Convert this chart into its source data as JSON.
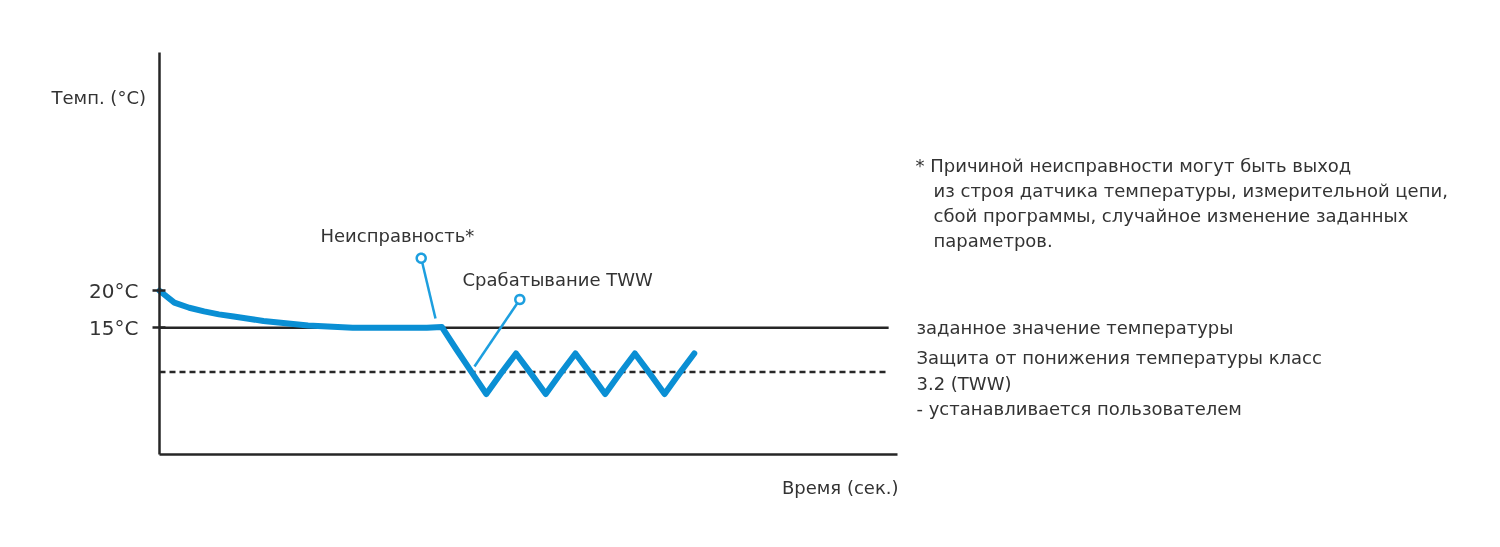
{
  "chart_data": {
    "type": "line",
    "ylabel": "Темп. (°C)",
    "xlabel": "Время (сек.)",
    "categories": [
      null,
      null,
      null,
      null,
      null,
      null,
      null,
      null,
      null,
      null,
      null,
      null,
      null,
      null,
      null,
      null,
      null,
      null,
      null,
      null,
      null,
      null,
      null,
      null,
      null,
      null,
      null,
      null,
      null,
      null,
      null,
      null,
      null,
      null,
      null,
      null,
      null
    ],
    "values": [
      20,
      18.4,
      17.7,
      17.2,
      16.8,
      16.5,
      16.2,
      15.9,
      15.7,
      15.5,
      15.3,
      15.2,
      15.1,
      15,
      15,
      15,
      15,
      15,
      15,
      15.1,
      12,
      9,
      6,
      8.8,
      11.5,
      8.8,
      6,
      8.8,
      11.5,
      8.8,
      6,
      8.8,
      11.5,
      8.8,
      6,
      8.8,
      11.5
    ],
    "color": "#0a8fd4",
    "line_style": "solid",
    "ylim": [
      -2.2,
      52.3
    ],
    "yticks": [
      {
        "value": 20,
        "label": "20°C"
      },
      {
        "value": 15,
        "label": "15°C"
      }
    ],
    "tick_labels": "y",
    "grid": false,
    "ref_lines": [
      {
        "axis": "y",
        "value": 15,
        "label": "заданное значение температуры",
        "color": "#262626",
        "line_style": "solid"
      },
      {
        "axis": "y",
        "value": 9,
        "label": "Защита от понижения температуры класс\n3.2 (TWW)\n- устанавливается пользователем",
        "color": "#262626",
        "line_style": "dashed"
      }
    ],
    "annotations": [
      "Неисправность*",
      "Срабатывание TWW",
      "* Причиной неисправности могут быть выход\nиз строя датчика температуры, измерительной цепи,\nсбой программы, случайное изменение заданных\nпараметров."
    ]
  }
}
